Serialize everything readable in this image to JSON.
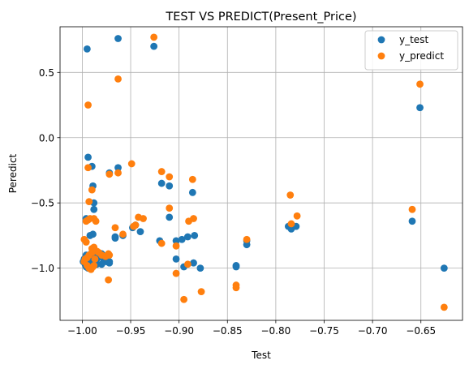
{
  "chart_data": {
    "type": "scatter",
    "title": "TEST VS PREDICT(Present_Price)",
    "xlabel": "Test",
    "ylabel": "Peredict",
    "xlim": [
      -1.023,
      -0.607
    ],
    "ylim": [
      -1.4,
      0.85
    ],
    "x_ticks": [
      -1.0,
      -0.95,
      -0.9,
      -0.85,
      -0.8,
      -0.75,
      -0.7,
      -0.65
    ],
    "x_tick_labels": [
      "−1.00",
      "−0.95",
      "−0.90",
      "−0.85",
      "−0.80",
      "−0.75",
      "−0.70",
      "−0.65"
    ],
    "y_ticks": [
      -1.0,
      -0.5,
      0.0,
      0.5
    ],
    "y_tick_labels": [
      "−1.0",
      "−0.5",
      "0.0",
      "0.5"
    ],
    "grid": true,
    "legend_position": "top-right",
    "series": [
      {
        "name": "y_test",
        "color": "#1f77b4",
        "x": [
          -0.995,
          -0.963,
          -0.926,
          -0.994,
          -0.99,
          -0.988,
          -0.972,
          -0.963,
          -0.989,
          -0.988,
          -0.996,
          -0.992,
          -0.989,
          -0.975,
          -0.978,
          -0.972,
          -0.985,
          -0.988,
          -0.99,
          -0.996,
          -0.998,
          -0.994,
          -0.992,
          -0.995,
          -0.997,
          -0.993,
          -0.99,
          -0.98,
          -0.975,
          -0.972,
          -0.98,
          -0.988,
          -0.994,
          -0.996,
          -0.999,
          -0.993,
          -0.987,
          -0.985,
          -0.966,
          -0.966,
          -0.958,
          -0.948,
          -0.945,
          -0.94,
          -0.918,
          -0.92,
          -0.91,
          -0.91,
          -0.903,
          -0.903,
          -0.895,
          -0.897,
          -0.891,
          -0.886,
          -0.884,
          -0.885,
          -0.878,
          -0.841,
          -0.841,
          -0.83,
          -0.83,
          -0.787,
          -0.784,
          -0.779,
          -0.659,
          -0.651,
          -0.626
        ],
        "y": [
          0.68,
          0.76,
          0.7,
          -0.15,
          -0.22,
          -0.55,
          -0.27,
          -0.23,
          -0.37,
          -0.5,
          -0.62,
          -0.75,
          -0.74,
          -0.95,
          -0.93,
          -0.96,
          -0.97,
          -0.95,
          -0.92,
          -0.9,
          -0.93,
          -0.96,
          -0.98,
          -0.99,
          -0.97,
          -0.9,
          -0.88,
          -0.89,
          -0.93,
          -0.95,
          -0.97,
          -0.98,
          -1.0,
          -0.99,
          -0.95,
          -0.9,
          -0.91,
          -0.93,
          -0.77,
          -0.76,
          -0.75,
          -0.69,
          -0.67,
          -0.72,
          -0.35,
          -0.79,
          -0.37,
          -0.61,
          -0.79,
          -0.93,
          -0.99,
          -0.78,
          -0.76,
          -0.42,
          -0.75,
          -0.96,
          -1.0,
          -0.98,
          -0.99,
          -0.79,
          -0.82,
          -0.68,
          -0.7,
          -0.68,
          -0.64,
          0.23,
          -1.0
        ]
      },
      {
        "name": "y_predict",
        "color": "#ff7f0e",
        "x": [
          -0.994,
          -0.963,
          -0.926,
          -0.994,
          -0.99,
          -0.993,
          -0.988,
          -0.986,
          -0.972,
          -0.963,
          -0.996,
          -0.994,
          -0.992,
          -0.99,
          -0.988,
          -0.985,
          -0.998,
          -0.996,
          -0.995,
          -0.993,
          -0.991,
          -0.989,
          -0.987,
          -0.983,
          -0.98,
          -0.976,
          -0.973,
          -0.998,
          -0.997,
          -0.995,
          -0.993,
          -0.99,
          -0.988,
          -0.973,
          -0.972,
          -0.966,
          -0.958,
          -0.947,
          -0.945,
          -0.942,
          -0.937,
          -0.949,
          -0.918,
          -0.918,
          -0.91,
          -0.91,
          -0.903,
          -0.903,
          -0.895,
          -0.89,
          -0.891,
          -0.886,
          -0.885,
          -0.877,
          -0.841,
          -0.841,
          -0.83,
          -0.785,
          -0.784,
          -0.778,
          -0.659,
          -0.651,
          -0.626
        ],
        "y": [
          0.25,
          0.45,
          0.77,
          -0.23,
          -0.4,
          -0.49,
          -0.62,
          -0.64,
          -0.28,
          -0.27,
          -0.64,
          -0.63,
          -0.62,
          -0.85,
          -0.84,
          -0.87,
          -0.78,
          -0.8,
          -0.98,
          -1.0,
          -1.01,
          -0.99,
          -0.93,
          -0.88,
          -0.9,
          -0.91,
          -0.89,
          -0.95,
          -0.93,
          -0.92,
          -0.9,
          -0.88,
          -0.98,
          -1.09,
          -0.9,
          -0.69,
          -0.74,
          -0.68,
          -0.67,
          -0.61,
          -0.62,
          -0.2,
          -0.26,
          -0.81,
          -0.3,
          -0.54,
          -1.04,
          -0.83,
          -1.24,
          -0.64,
          -0.97,
          -0.32,
          -0.62,
          -1.18,
          -1.13,
          -1.15,
          -0.78,
          -0.44,
          -0.66,
          -0.6,
          -0.55,
          0.41,
          -1.3
        ]
      }
    ]
  }
}
